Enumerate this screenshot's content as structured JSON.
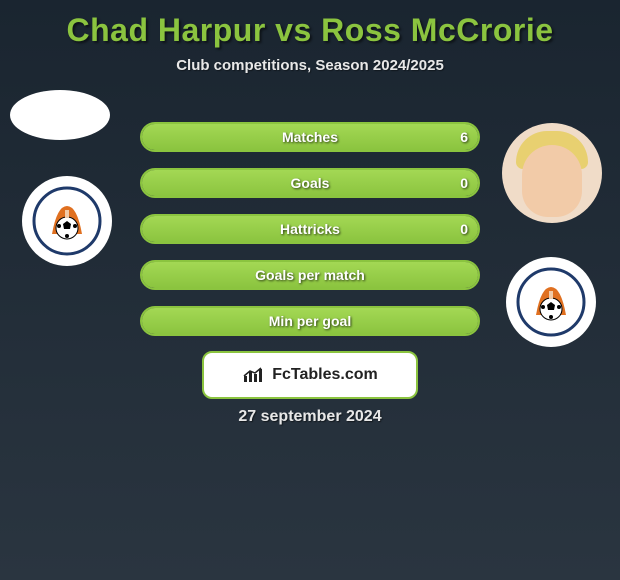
{
  "title": "Chad Harpur vs Ross McCrorie",
  "subtitle": "Club competitions, Season 2024/2025",
  "date_text": "27 september 2024",
  "brand": {
    "text": "FcTables.com"
  },
  "colors": {
    "accent": "#8bc43f",
    "bg_top": "#1a2530",
    "bg_bottom": "#2a3540",
    "text": "#e8e8e8",
    "badge_bg": "#ffffff",
    "crest_ring": "#1f3a6a",
    "crest_orange": "#e07020"
  },
  "bars": [
    {
      "label": "Matches",
      "left": "",
      "right": "6",
      "left_pct": 0,
      "right_pct": 100
    },
    {
      "label": "Goals",
      "left": "",
      "right": "0",
      "left_pct": 0,
      "right_pct": 100
    },
    {
      "label": "Hattricks",
      "left": "",
      "right": "0",
      "left_pct": 0,
      "right_pct": 100
    },
    {
      "label": "Goals per match",
      "left": "",
      "right": "",
      "left_pct": 0,
      "right_pct": 100
    },
    {
      "label": "Min per goal",
      "left": "",
      "right": "",
      "left_pct": 0,
      "right_pct": 100
    }
  ]
}
